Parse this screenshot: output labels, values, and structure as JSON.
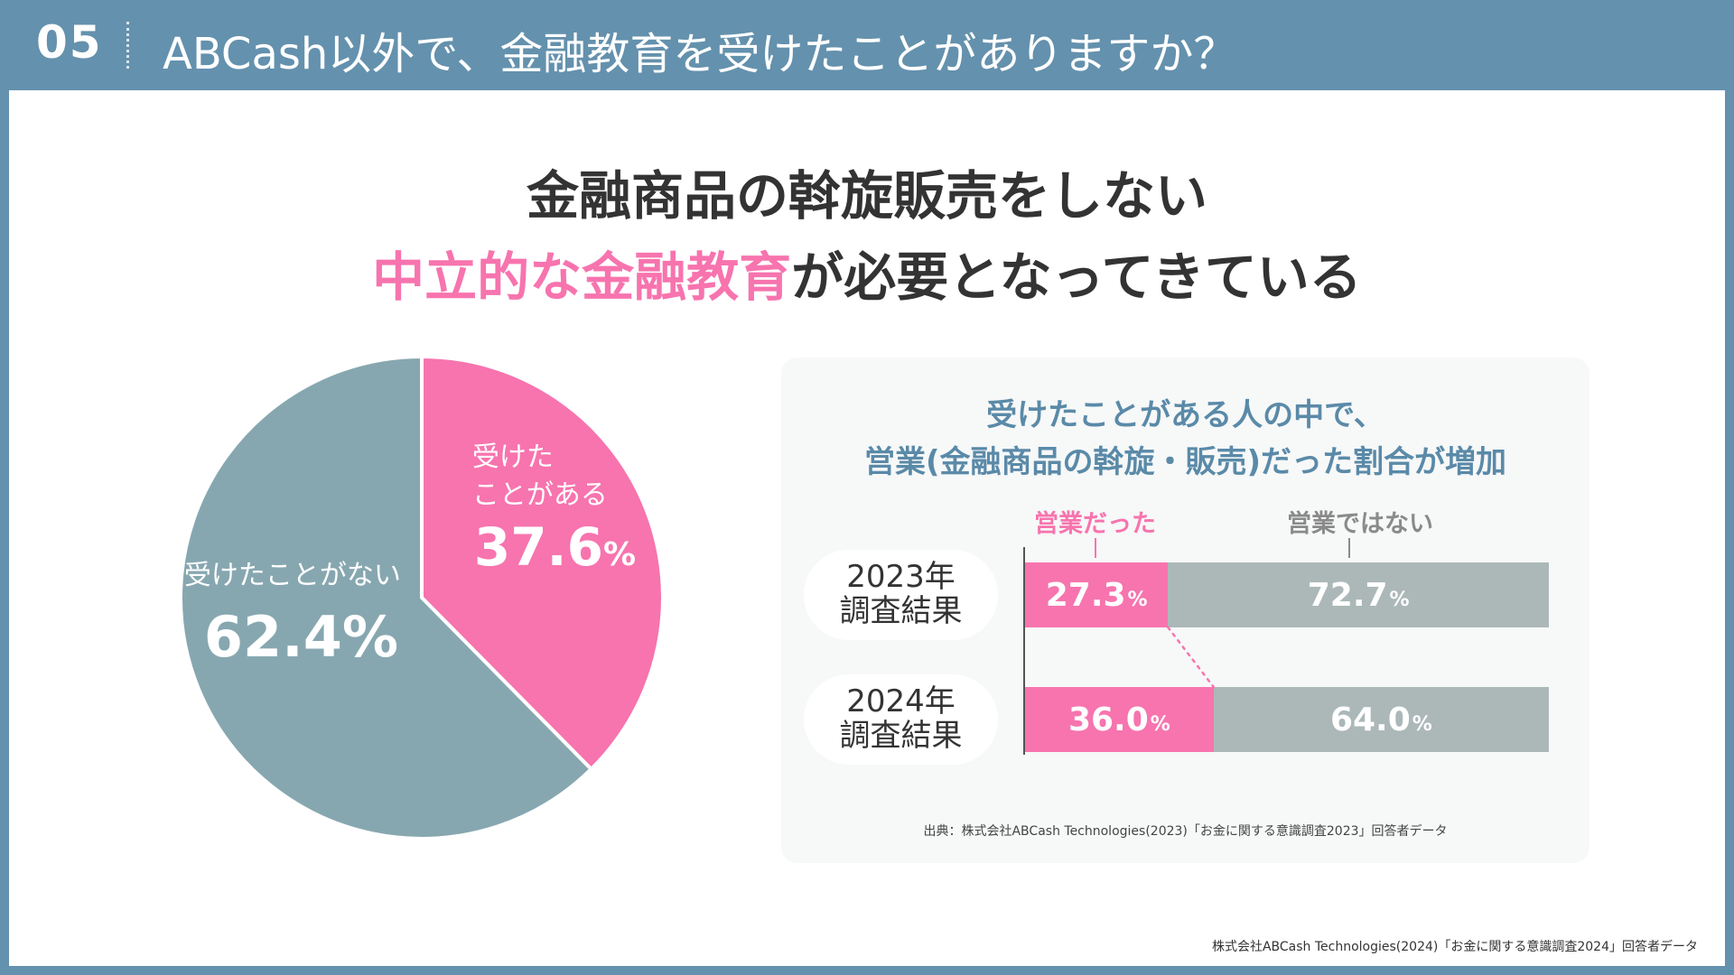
{
  "header": {
    "slide_number": "05",
    "title": "ABCash以外で、金融教育を受けたことがありますか？"
  },
  "headline": {
    "line1": "金融商品の斡旋販売をしない",
    "line2_highlight": "中立的な金融教育",
    "line2_rest": "が必要となってきている"
  },
  "colors": {
    "pink": "#f774ae",
    "slate": "#87a7b0",
    "gray_bar": "#acb8b8",
    "header_blue": "#6491ad"
  },
  "chart_data": [
    {
      "type": "pie",
      "slices": [
        {
          "label_line1": "受けた",
          "label_line2": "ことがある",
          "value": 37.6,
          "value_text": "37.6",
          "unit": "%"
        },
        {
          "label_line1": "受けたことがない",
          "value": 62.4,
          "value_text": "62.4",
          "unit": "%"
        }
      ]
    },
    {
      "type": "bar",
      "stacked": true,
      "orientation": "horizontal",
      "title_line1": "受けたことがある人の中で、",
      "title_line2": "営業(金融商品の斡旋・販売)だった割合が増加",
      "categories": [
        {
          "line1": "2023年",
          "line2": "調査結果"
        },
        {
          "line1": "2024年",
          "line2": "調査結果"
        }
      ],
      "series": [
        {
          "name": "営業だった",
          "values": [
            27.3,
            36.0
          ],
          "value_texts": [
            "27.3",
            "36.0"
          ]
        },
        {
          "name": "営業ではない",
          "values": [
            72.7,
            64.0
          ],
          "value_texts": [
            "72.7",
            "64.0"
          ]
        }
      ],
      "unit": "%",
      "source": "出典：株式会社ABCash Technologies(2023)「お金に関する意識調査2023」回答者データ"
    }
  ],
  "footer": {
    "source": "株式会社ABCash Technologies(2024)「お金に関する意識調査2024」回答者データ"
  }
}
